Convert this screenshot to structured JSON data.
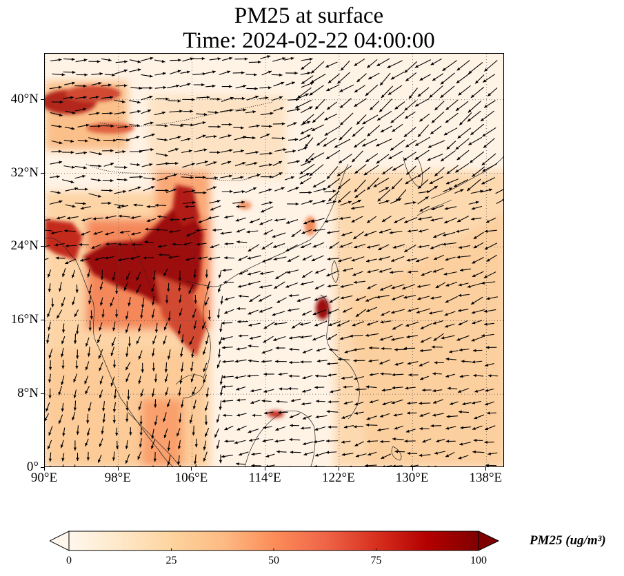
{
  "title": {
    "line1": "PM25 at surface",
    "line2": "Time: 2024-02-22 04:00:00"
  },
  "map": {
    "projection": "PlateCarree",
    "lon_range": [
      90,
      140
    ],
    "lat_range": [
      0,
      45
    ],
    "gridlines": "dotted",
    "x_ticks": [
      "90°E",
      "98°E",
      "106°E",
      "114°E",
      "122°E",
      "130°E",
      "138°E"
    ],
    "x_tick_values": [
      90,
      98,
      106,
      114,
      122,
      130,
      138
    ],
    "y_ticks": [
      "0°",
      "8°N",
      "16°N",
      "24°N",
      "32°N",
      "40°N"
    ],
    "y_tick_values": [
      0,
      8,
      16,
      24,
      32,
      40
    ],
    "field": "PM25",
    "overlay": "wind vectors (black arrows)"
  },
  "colorbar": {
    "label": "PM25 (ug/m³)",
    "ticks": [
      "0",
      "25",
      "50",
      "75",
      "100"
    ],
    "tick_values": [
      0,
      25,
      50,
      75,
      100
    ],
    "range": [
      0,
      100
    ],
    "extend": "both",
    "colormap": "OrRd",
    "colors": [
      "#fff7ec",
      "#fee8c8",
      "#fdd49e",
      "#fdbb84",
      "#fc8d59",
      "#ef6548",
      "#d7301f",
      "#b30000",
      "#7f0000"
    ]
  }
}
